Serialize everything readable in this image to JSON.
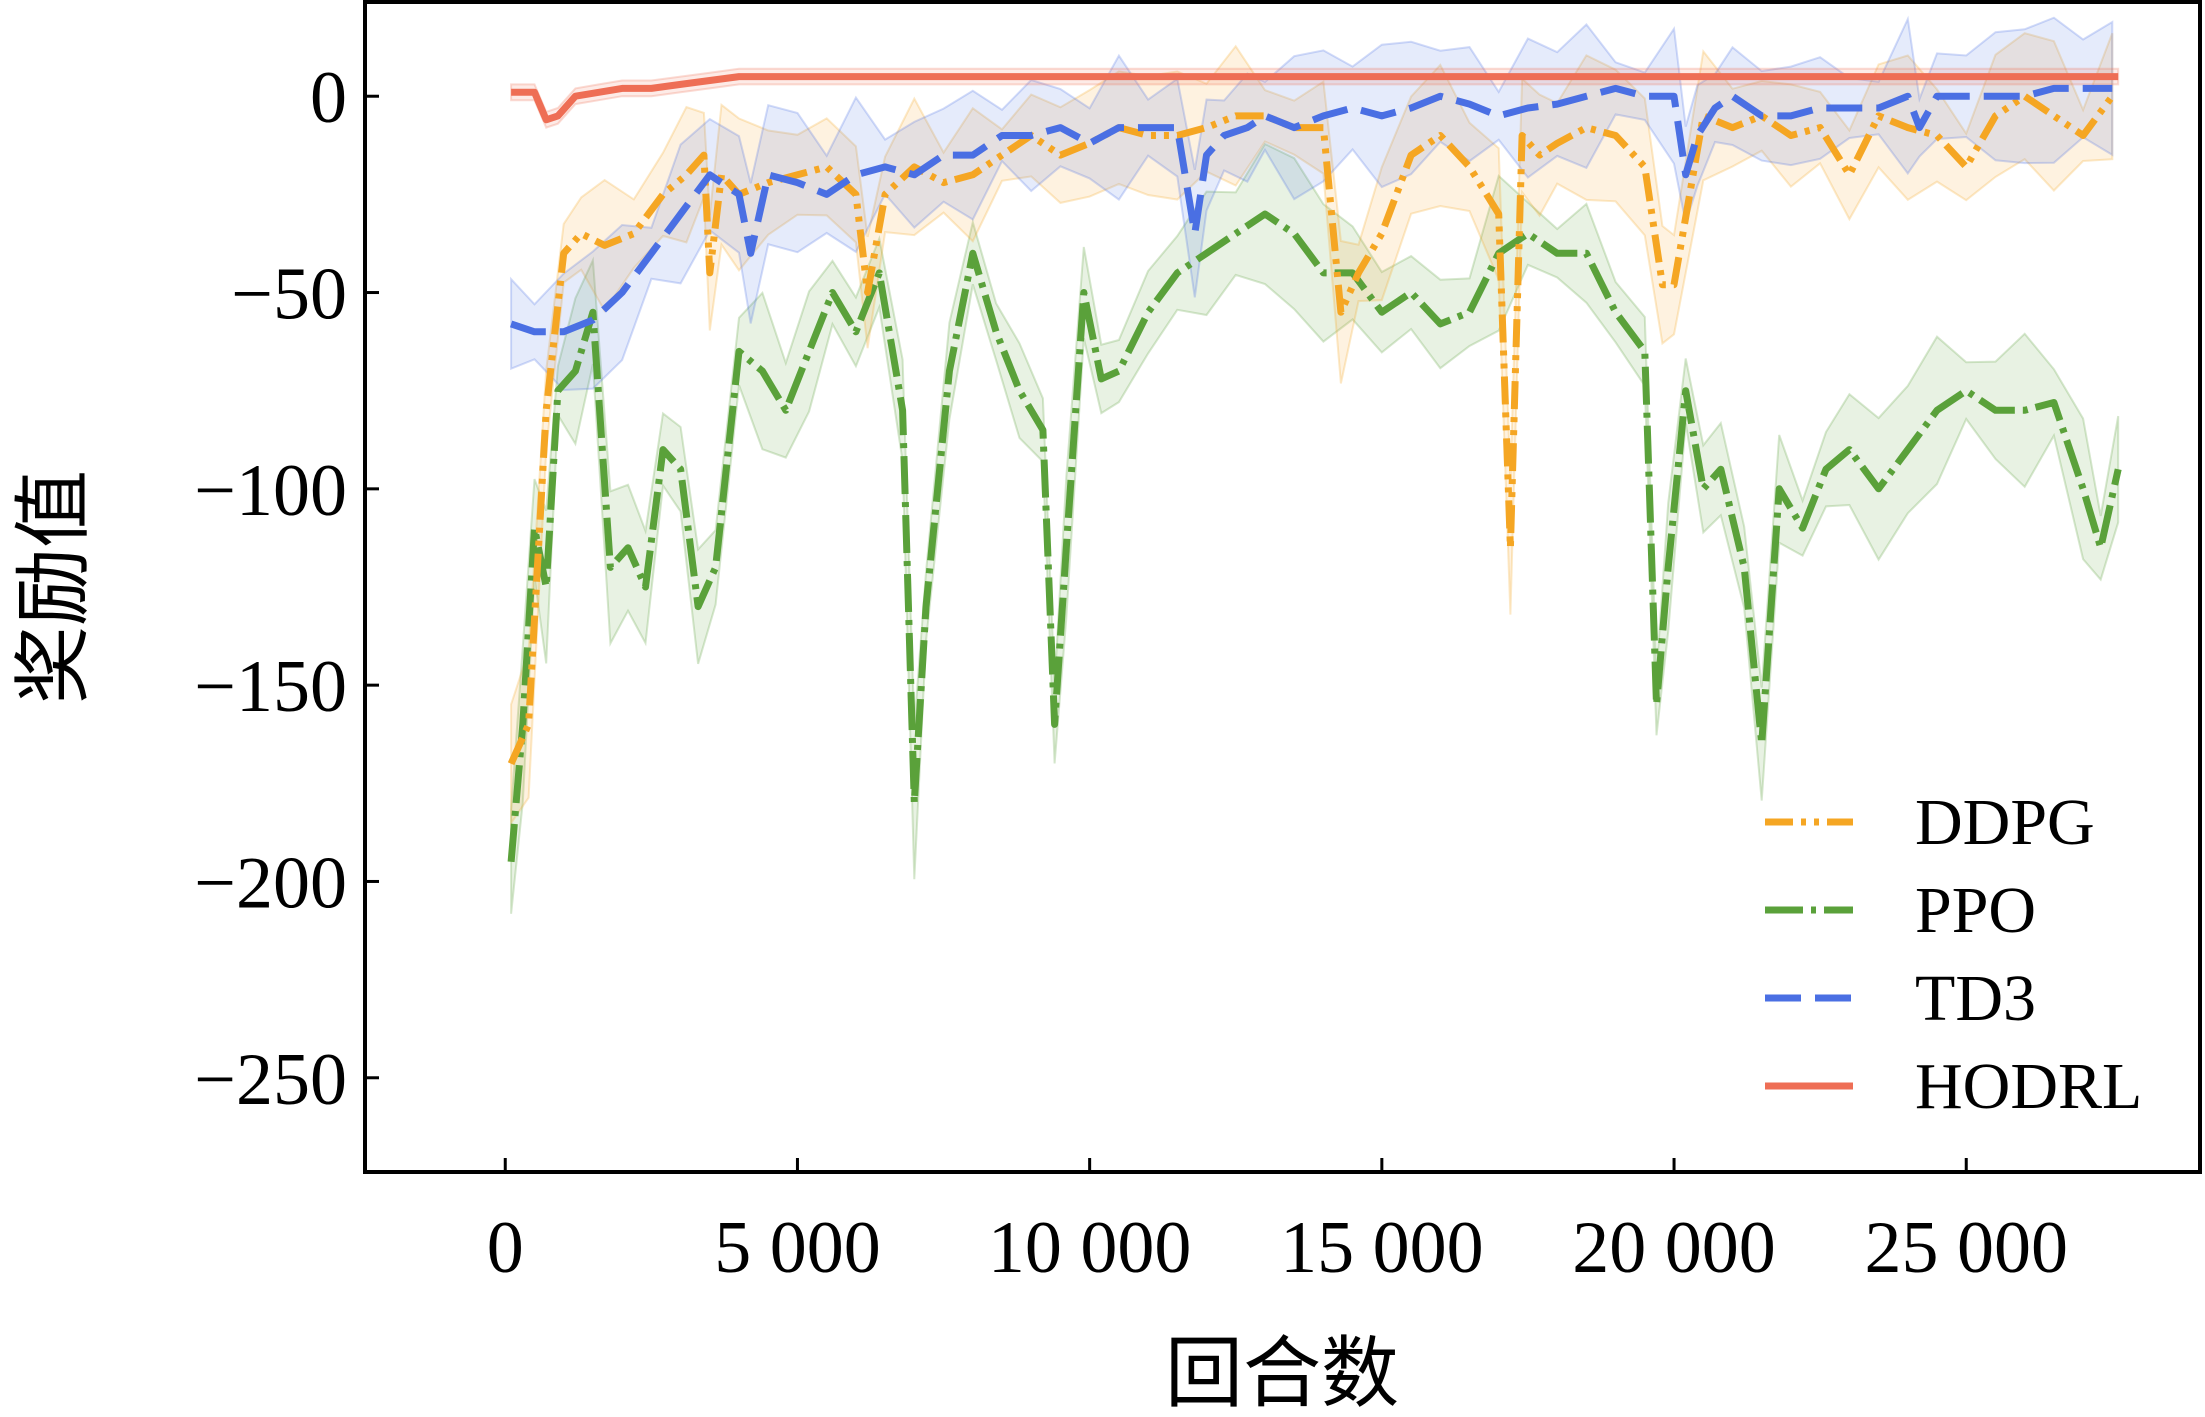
{
  "chart_data": {
    "type": "line",
    "xlabel": "回合数",
    "ylabel": "奖励值",
    "xlim": [
      -2400,
      29000
    ],
    "ylim": [
      -274,
      24
    ],
    "x_ticks": [
      0,
      5000,
      10000,
      15000,
      20000,
      25000
    ],
    "x_tick_labels": [
      "0",
      "5 000",
      "10 000",
      "15 000",
      "20 000",
      "25 000"
    ],
    "y_ticks": [
      0,
      -50,
      -100,
      -150,
      -200,
      -250
    ],
    "y_tick_labels": [
      "0",
      "−50",
      "−100",
      "−150",
      "−200",
      "−250"
    ],
    "grid": false,
    "legend_position": "lower-right",
    "series": [
      {
        "name": "DDPG",
        "color": "#f5a623",
        "dash": "28 8 5 8 5 8",
        "x": [
          100,
          400,
          700,
          1000,
          1300,
          1700,
          2200,
          2700,
          3100,
          3400,
          3500,
          3700,
          4000,
          4500,
          5000,
          5500,
          6000,
          6200,
          6500,
          7000,
          7500,
          8000,
          8500,
          9000,
          9500,
          10000,
          10500,
          11000,
          11500,
          12000,
          12500,
          13000,
          13500,
          14000,
          14300,
          14600,
          15000,
          15500,
          16000,
          16500,
          17000,
          17200,
          17400,
          17700,
          18000,
          18500,
          19000,
          19500,
          19800,
          20000,
          20500,
          21000,
          21500,
          22000,
          22500,
          23000,
          23500,
          24000,
          24500,
          25000,
          25500,
          26000,
          26500,
          27000,
          27500
        ],
        "y": [
          -170,
          -160,
          -80,
          -40,
          -35,
          -38,
          -35,
          -25,
          -20,
          -15,
          -45,
          -20,
          -25,
          -22,
          -20,
          -18,
          -25,
          -50,
          -25,
          -18,
          -22,
          -20,
          -15,
          -10,
          -15,
          -12,
          -8,
          -10,
          -10,
          -8,
          -5,
          -5,
          -8,
          -8,
          -55,
          -45,
          -35,
          -15,
          -10,
          -18,
          -30,
          -115,
          -10,
          -15,
          -12,
          -8,
          -10,
          -18,
          -48,
          -48,
          -5,
          -8,
          -5,
          -10,
          -8,
          -20,
          -5,
          -8,
          -10,
          -18,
          -5,
          0,
          -5,
          -10,
          0
        ]
      },
      {
        "name": "PPO",
        "color": "#5aa13a",
        "dash": "38 8 5 8",
        "x": [
          100,
          300,
          500,
          700,
          900,
          1200,
          1500,
          1800,
          2100,
          2400,
          2700,
          3000,
          3300,
          3600,
          4000,
          4400,
          4800,
          5200,
          5600,
          6000,
          6400,
          6800,
          7000,
          7200,
          7600,
          8000,
          8400,
          8800,
          9200,
          9400,
          9600,
          9900,
          10200,
          10500,
          11000,
          11500,
          12000,
          12500,
          13000,
          13500,
          14000,
          14500,
          15000,
          15500,
          16000,
          16500,
          17000,
          17500,
          18000,
          18500,
          19000,
          19500,
          19700,
          19900,
          20200,
          20500,
          20800,
          21200,
          21500,
          21800,
          22200,
          22600,
          23000,
          23500,
          24000,
          24500,
          25000,
          25500,
          26000,
          26500,
          27000,
          27300,
          27600
        ],
        "y": [
          -195,
          -160,
          -110,
          -125,
          -75,
          -70,
          -55,
          -120,
          -115,
          -125,
          -90,
          -95,
          -130,
          -120,
          -65,
          -70,
          -80,
          -65,
          -50,
          -60,
          -45,
          -80,
          -180,
          -130,
          -70,
          -40,
          -60,
          -75,
          -85,
          -160,
          -115,
          -50,
          -72,
          -70,
          -55,
          -45,
          -40,
          -35,
          -30,
          -35,
          -45,
          -45,
          -55,
          -50,
          -58,
          -55,
          -40,
          -35,
          -40,
          -40,
          -55,
          -65,
          -155,
          -120,
          -75,
          -100,
          -95,
          -120,
          -165,
          -100,
          -110,
          -95,
          -90,
          -100,
          -90,
          -80,
          -75,
          -80,
          -80,
          -78,
          -100,
          -115,
          -95
        ]
      },
      {
        "name": "TD3",
        "color": "#4a6fe3",
        "dash": "36 14",
        "x": [
          100,
          500,
          1000,
          1500,
          2000,
          2500,
          3000,
          3500,
          4000,
          4200,
          4500,
          5000,
          5500,
          6000,
          6500,
          7000,
          7500,
          8000,
          8500,
          9000,
          9500,
          10000,
          10500,
          11000,
          11500,
          11800,
          12000,
          12300,
          12700,
          13000,
          13500,
          14000,
          14500,
          15000,
          15500,
          16000,
          16500,
          17000,
          17500,
          18000,
          18500,
          19000,
          19500,
          20000,
          20200,
          20400,
          20700,
          21000,
          21500,
          22000,
          22500,
          23000,
          23500,
          24000,
          24200,
          24500,
          25000,
          25500,
          26000,
          26500,
          27000,
          27500
        ],
        "y": [
          -58,
          -60,
          -60,
          -57,
          -50,
          -40,
          -30,
          -20,
          -25,
          -40,
          -20,
          -22,
          -25,
          -20,
          -18,
          -20,
          -15,
          -15,
          -10,
          -10,
          -8,
          -12,
          -8,
          -8,
          -8,
          -35,
          -15,
          -10,
          -8,
          -5,
          -8,
          -5,
          -3,
          -5,
          -3,
          0,
          -2,
          -5,
          -3,
          -2,
          0,
          2,
          0,
          0,
          -20,
          -10,
          -3,
          0,
          -5,
          -5,
          -3,
          -3,
          -3,
          0,
          -8,
          0,
          0,
          0,
          0,
          2,
          2,
          2
        ]
      },
      {
        "name": "HODRL",
        "color": "#ee6e55",
        "dash": "",
        "x": [
          100,
          300,
          500,
          700,
          900,
          1200,
          1600,
          2000,
          2500,
          3000,
          3500,
          4000,
          5000,
          6000,
          8000,
          10000,
          12000,
          14000,
          16000,
          18000,
          20000,
          22000,
          24000,
          26000,
          27600
        ],
        "y": [
          1,
          1,
          1,
          -6,
          -5,
          0,
          1,
          2,
          2,
          3,
          4,
          5,
          5,
          5,
          5,
          5,
          5,
          5,
          5,
          5,
          5,
          5,
          5,
          5,
          5
        ]
      }
    ]
  }
}
